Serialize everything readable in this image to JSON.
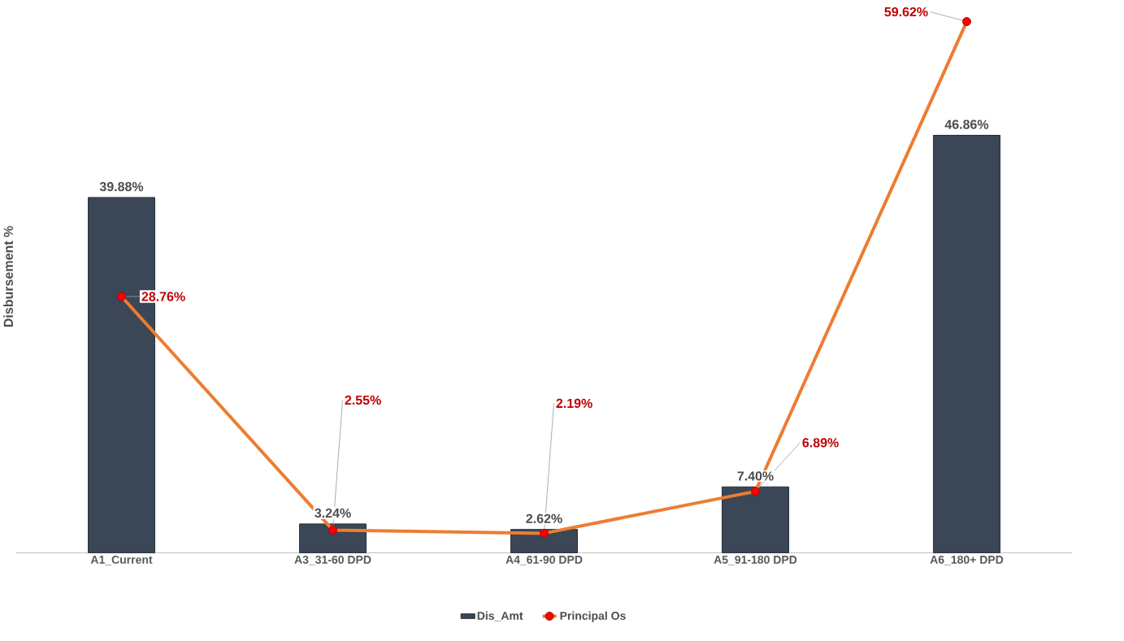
{
  "chart_data": {
    "type": "bar",
    "ylabel": "Disbursement %",
    "categories": [
      "A1_Current",
      "A3_31-60 DPD",
      "A4_61-90 DPD",
      "A5_91-180 DPD",
      "A6_180+ DPD"
    ],
    "series": [
      {
        "name": "Dis_Amt",
        "color": "#3b4656",
        "values": [
          39.88,
          3.24,
          2.62,
          7.4,
          46.86
        ],
        "value_labels": [
          "39.88%",
          "3.24%",
          "2.62%",
          "7.40%",
          "46.86%"
        ]
      },
      {
        "name": "Principal Os",
        "type": "line",
        "color": "#ed7d31",
        "marker": "circle",
        "values": [
          28.76,
          2.55,
          2.19,
          6.89,
          59.62
        ],
        "value_labels": [
          "28.76%",
          "2.55%",
          "2.19%",
          "6.89%",
          "59.62%"
        ]
      }
    ],
    "legend": "bottom",
    "grid": false
  }
}
